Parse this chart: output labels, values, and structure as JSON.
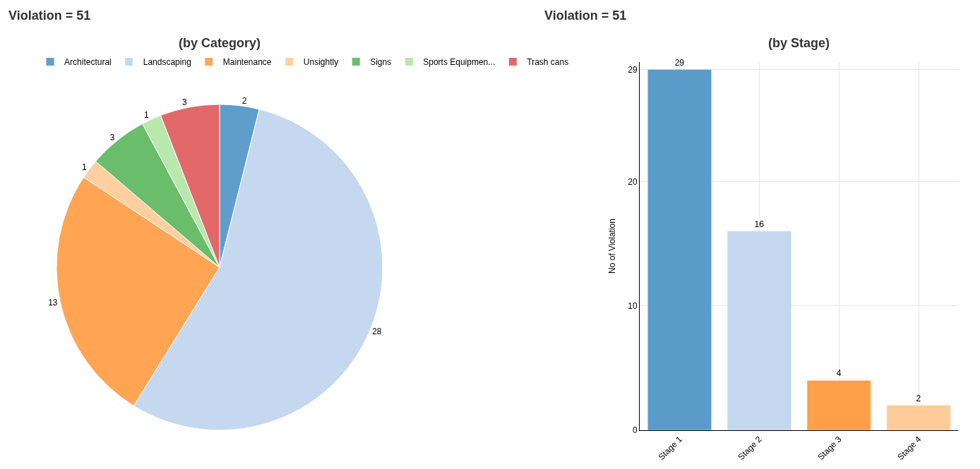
{
  "chart_data": [
    {
      "type": "pie",
      "title": "Violation = 51",
      "subtitle": "(by Category)",
      "categories": [
        "Architectural",
        "Landscaping",
        "Maintenance",
        "Unsightly",
        "Signs",
        "Sports Equipmen...",
        "Trash cans"
      ],
      "values": [
        2,
        28,
        13,
        1,
        3,
        1,
        3
      ],
      "colors": [
        "#5f9ecb",
        "#c5d8f0",
        "#ffa554",
        "#ffcf9f",
        "#6abd6a",
        "#b9e8ad",
        "#e2686a"
      ],
      "data_labels": true,
      "legend": "top"
    },
    {
      "type": "bar",
      "title": "Violation = 51",
      "subtitle": "(by Stage)",
      "categories": [
        "Stage 1",
        "Stage 2",
        "Stage 3",
        "Stage 4"
      ],
      "values": [
        29,
        16,
        4,
        2
      ],
      "colors": [
        "#5a9bc9",
        "#c4d7ef",
        "#ff9f4a",
        "#ffcc99"
      ],
      "ylabel": "No of Violation",
      "ylim": [
        0,
        29.6
      ],
      "yticks": [
        0,
        10,
        20,
        29
      ],
      "data_labels": true,
      "grid": true
    }
  ]
}
